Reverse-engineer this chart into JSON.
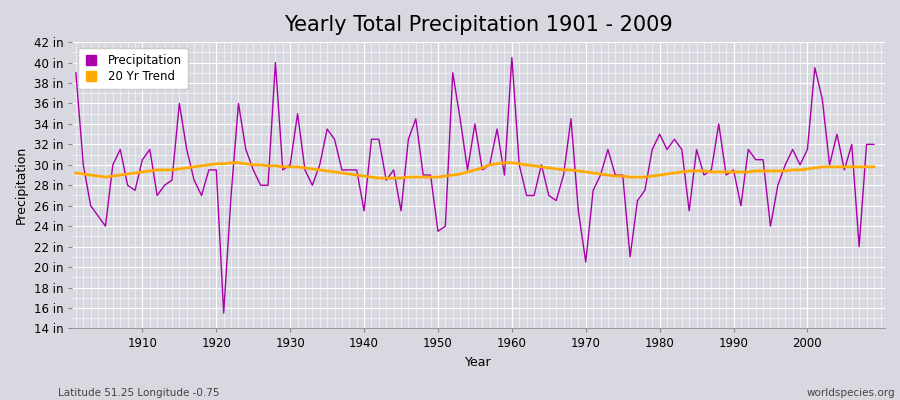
{
  "title": "Yearly Total Precipitation 1901 - 2009",
  "xlabel": "Year",
  "ylabel": "Precipitation",
  "subtitle_left": "Latitude 51.25 Longitude -0.75",
  "subtitle_right": "worldspecies.org",
  "years": [
    1901,
    1902,
    1903,
    1904,
    1905,
    1906,
    1907,
    1908,
    1909,
    1910,
    1911,
    1912,
    1913,
    1914,
    1915,
    1916,
    1917,
    1918,
    1919,
    1920,
    1921,
    1922,
    1923,
    1924,
    1925,
    1926,
    1927,
    1928,
    1929,
    1930,
    1931,
    1932,
    1933,
    1934,
    1935,
    1936,
    1937,
    1938,
    1939,
    1940,
    1941,
    1942,
    1943,
    1944,
    1945,
    1946,
    1947,
    1948,
    1949,
    1950,
    1951,
    1952,
    1953,
    1954,
    1955,
    1956,
    1957,
    1958,
    1959,
    1960,
    1961,
    1962,
    1963,
    1964,
    1965,
    1966,
    1967,
    1968,
    1969,
    1970,
    1971,
    1972,
    1973,
    1974,
    1975,
    1976,
    1977,
    1978,
    1979,
    1980,
    1981,
    1982,
    1983,
    1984,
    1985,
    1986,
    1987,
    1988,
    1989,
    1990,
    1991,
    1992,
    1993,
    1994,
    1995,
    1996,
    1997,
    1998,
    1999,
    2000,
    2001,
    2002,
    2003,
    2004,
    2005,
    2006,
    2007,
    2008,
    2009
  ],
  "precip": [
    39.0,
    30.0,
    26.0,
    25.0,
    24.0,
    30.0,
    31.5,
    28.0,
    27.5,
    30.5,
    31.5,
    27.0,
    28.0,
    28.5,
    36.0,
    31.5,
    28.5,
    27.0,
    29.5,
    29.5,
    15.5,
    27.0,
    36.0,
    31.5,
    29.5,
    28.0,
    28.0,
    40.0,
    29.5,
    30.0,
    35.0,
    29.5,
    28.0,
    30.0,
    33.5,
    32.5,
    29.5,
    29.5,
    29.5,
    25.5,
    32.5,
    32.5,
    28.5,
    29.5,
    25.5,
    32.5,
    34.5,
    29.0,
    29.0,
    23.5,
    24.0,
    39.0,
    34.5,
    29.5,
    34.0,
    29.5,
    30.0,
    33.5,
    29.0,
    40.5,
    30.0,
    27.0,
    27.0,
    30.0,
    27.0,
    26.5,
    29.0,
    34.5,
    25.5,
    20.5,
    27.5,
    29.0,
    31.5,
    29.0,
    29.0,
    21.0,
    26.5,
    27.5,
    31.5,
    33.0,
    31.5,
    32.5,
    31.5,
    25.5,
    31.5,
    29.0,
    29.5,
    34.0,
    29.0,
    29.5,
    26.0,
    31.5,
    30.5,
    30.5,
    24.0,
    28.0,
    30.0,
    31.5,
    30.0,
    31.5,
    39.5,
    36.5,
    30.0,
    33.0,
    29.5,
    32.0,
    22.0,
    32.0,
    32.0
  ],
  "trend": [
    29.2,
    29.1,
    29.0,
    28.9,
    28.8,
    28.9,
    29.0,
    29.1,
    29.2,
    29.3,
    29.4,
    29.5,
    29.5,
    29.5,
    29.6,
    29.7,
    29.8,
    29.9,
    30.0,
    30.1,
    30.1,
    30.2,
    30.2,
    30.1,
    30.0,
    30.0,
    29.9,
    29.9,
    29.8,
    29.8,
    29.8,
    29.7,
    29.6,
    29.5,
    29.4,
    29.3,
    29.2,
    29.1,
    29.0,
    28.9,
    28.8,
    28.7,
    28.7,
    28.7,
    28.7,
    28.8,
    28.8,
    28.8,
    28.8,
    28.8,
    28.9,
    29.0,
    29.1,
    29.3,
    29.5,
    29.7,
    30.0,
    30.1,
    30.2,
    30.2,
    30.1,
    30.0,
    29.9,
    29.8,
    29.7,
    29.6,
    29.5,
    29.5,
    29.4,
    29.3,
    29.2,
    29.1,
    29.0,
    28.9,
    28.9,
    28.8,
    28.8,
    28.8,
    28.9,
    29.0,
    29.1,
    29.2,
    29.3,
    29.4,
    29.4,
    29.4,
    29.3,
    29.3,
    29.3,
    29.3,
    29.3,
    29.3,
    29.4,
    29.4,
    29.4,
    29.4,
    29.4,
    29.5,
    29.5,
    29.6,
    29.7,
    29.8,
    29.8,
    29.8,
    29.8,
    29.8,
    29.8,
    29.8,
    29.8
  ],
  "precip_color": "#aa00aa",
  "trend_color": "#ffaa00",
  "bg_color": "#d8d8e0",
  "plot_bg": "#d8d8e0",
  "grid_color": "#ffffff",
  "ylim": [
    14,
    42
  ],
  "yticks": [
    14,
    16,
    18,
    20,
    22,
    24,
    26,
    28,
    30,
    32,
    34,
    36,
    38,
    40,
    42
  ],
  "xticks": [
    1910,
    1920,
    1930,
    1940,
    1950,
    1960,
    1970,
    1980,
    1990,
    2000
  ],
  "title_fontsize": 15,
  "label_fontsize": 9,
  "tick_fontsize": 8.5
}
